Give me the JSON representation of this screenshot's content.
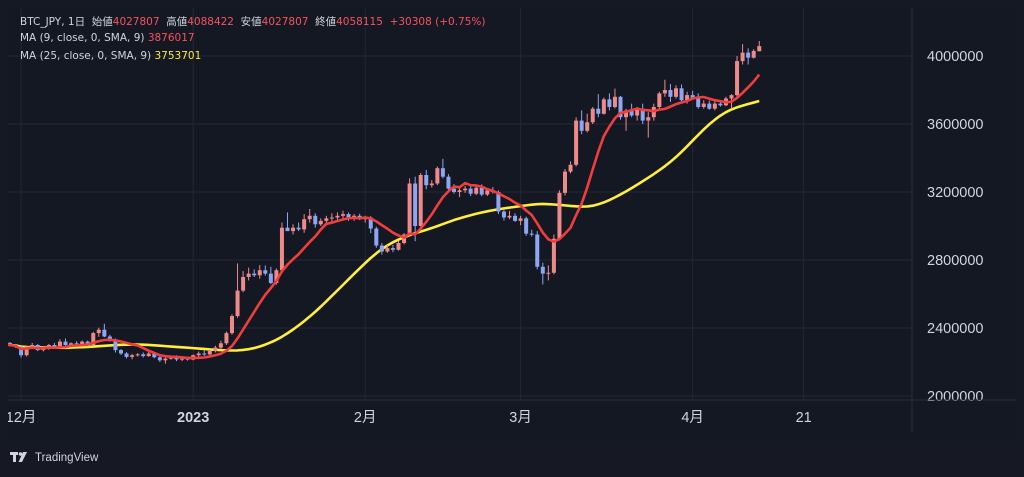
{
  "legend": {
    "symbol": "BTC_JPY",
    "interval": "1日",
    "open_label": "始値",
    "open": "4027807",
    "high_label": "高値",
    "high": "4088422",
    "low_label": "安値",
    "low": "4027807",
    "close_label": "終値",
    "close": "4058115",
    "change": "+30308 (+0.75%)",
    "ma1_label": "MA (9, close, 0, SMA, 9)",
    "ma1_value": "3876017",
    "ma2_label": "MA (25, close, 0, SMA, 9)",
    "ma2_value": "3753701"
  },
  "brand": {
    "name": "TradingView"
  },
  "colors": {
    "up": "#ef8a8a",
    "down": "#8ea6f2",
    "ma1": "#f23d3d",
    "ma2": "#ffee3d"
  },
  "chart_data": {
    "type": "candlestick",
    "y_ticks": [
      "4000000",
      "3600000",
      "3200000",
      "2800000",
      "2400000",
      "2000000"
    ],
    "ylim": [
      2000000,
      4200000
    ],
    "x_ticks": [
      {
        "label": "12月",
        "index": 2
      },
      {
        "label": "2023",
        "index": 33
      },
      {
        "label": "2月",
        "index": 64
      },
      {
        "label": "3月",
        "index": 92
      },
      {
        "label": "4月",
        "index": 123
      },
      {
        "label": "21",
        "index": 143
      }
    ],
    "candles": [
      [
        2312000,
        2318000,
        2294000,
        2300000
      ],
      [
        2300000,
        2306000,
        2283000,
        2290000
      ],
      [
        2290000,
        2300000,
        2226000,
        2240000
      ],
      [
        2240000,
        2298000,
        2232000,
        2290000
      ],
      [
        2290000,
        2312000,
        2280000,
        2300000
      ],
      [
        2300000,
        2306000,
        2264000,
        2270000
      ],
      [
        2270000,
        2294000,
        2262000,
        2280000
      ],
      [
        2280000,
        2306000,
        2272000,
        2300000
      ],
      [
        2300000,
        2312000,
        2284000,
        2290000
      ],
      [
        2290000,
        2334000,
        2286000,
        2320000
      ],
      [
        2320000,
        2338000,
        2296000,
        2300000
      ],
      [
        2300000,
        2316000,
        2287000,
        2310000
      ],
      [
        2310000,
        2322000,
        2292000,
        2305000
      ],
      [
        2305000,
        2326000,
        2298000,
        2320000
      ],
      [
        2320000,
        2326000,
        2292000,
        2300000
      ],
      [
        2300000,
        2378000,
        2296000,
        2370000
      ],
      [
        2370000,
        2402000,
        2348000,
        2390000
      ],
      [
        2390000,
        2425000,
        2346000,
        2350000
      ],
      [
        2350000,
        2360000,
        2321000,
        2330000
      ],
      [
        2330000,
        2338000,
        2256000,
        2270000
      ],
      [
        2270000,
        2276000,
        2242000,
        2250000
      ],
      [
        2250000,
        2258000,
        2221000,
        2230000
      ],
      [
        2230000,
        2248000,
        2216000,
        2240000
      ],
      [
        2240000,
        2252000,
        2232000,
        2245000
      ],
      [
        2245000,
        2256000,
        2226000,
        2235000
      ],
      [
        2235000,
        2260000,
        2230000,
        2250000
      ],
      [
        2250000,
        2258000,
        2222000,
        2228000
      ],
      [
        2228000,
        2238000,
        2200000,
        2210000
      ],
      [
        2210000,
        2226000,
        2190000,
        2220000
      ],
      [
        2220000,
        2234000,
        2214000,
        2225000
      ],
      [
        2225000,
        2240000,
        2205000,
        2215000
      ],
      [
        2215000,
        2230000,
        2205000,
        2220000
      ],
      [
        2220000,
        2230000,
        2208000,
        2214000
      ],
      [
        2214000,
        2244000,
        2210000,
        2240000
      ],
      [
        2240000,
        2262000,
        2230000,
        2250000
      ],
      [
        2250000,
        2270000,
        2236000,
        2245000
      ],
      [
        2245000,
        2272000,
        2240000,
        2265000
      ],
      [
        2265000,
        2296000,
        2256000,
        2285000
      ],
      [
        2285000,
        2325000,
        2275000,
        2310000
      ],
      [
        2310000,
        2380000,
        2300000,
        2370000
      ],
      [
        2370000,
        2480000,
        2360000,
        2470000
      ],
      [
        2470000,
        2780000,
        2460000,
        2620000
      ],
      [
        2620000,
        2735000,
        2610000,
        2700000
      ],
      [
        2700000,
        2755000,
        2680000,
        2720000
      ],
      [
        2720000,
        2745000,
        2700000,
        2710000
      ],
      [
        2710000,
        2770000,
        2690000,
        2740000
      ],
      [
        2740000,
        2768000,
        2708000,
        2720000
      ],
      [
        2720000,
        2760000,
        2658000,
        2665000
      ],
      [
        2665000,
        2750000,
        2655000,
        2740000
      ],
      [
        2740000,
        3020000,
        2730000,
        2990000
      ],
      [
        2990000,
        3080000,
        2980000,
        2970000
      ],
      [
        2970000,
        3010000,
        2950000,
        2990000
      ],
      [
        2990000,
        3020000,
        2970000,
        2980000
      ],
      [
        2980000,
        3070000,
        2960000,
        3040000
      ],
      [
        3040000,
        3100000,
        3020000,
        3060000
      ],
      [
        3060000,
        3075000,
        2990000,
        3010000
      ],
      [
        3010000,
        3045000,
        3000000,
        3030000
      ],
      [
        3030000,
        3060000,
        3015000,
        3045000
      ],
      [
        3045000,
        3075000,
        3025000,
        3050000
      ],
      [
        3050000,
        3080000,
        3030000,
        3060000
      ],
      [
        3060000,
        3090000,
        3040000,
        3070000
      ],
      [
        3070000,
        3080000,
        3030000,
        3045000
      ],
      [
        3045000,
        3070000,
        3030000,
        3060000
      ],
      [
        3060000,
        3072000,
        3035000,
        3040000
      ],
      [
        3040000,
        3060000,
        3020000,
        3050000
      ],
      [
        3050000,
        3058000,
        2958000,
        2985000
      ],
      [
        2985000,
        2996000,
        2872000,
        2885000
      ],
      [
        2885000,
        2900000,
        2832000,
        2850000
      ],
      [
        2850000,
        2888000,
        2842000,
        2870000
      ],
      [
        2870000,
        2890000,
        2846000,
        2860000
      ],
      [
        2860000,
        2912000,
        2855000,
        2900000
      ],
      [
        2900000,
        2958000,
        2892000,
        2950000
      ],
      [
        2950000,
        3280000,
        2940000,
        3250000
      ],
      [
        3250000,
        3290000,
        2910000,
        3000000
      ],
      [
        3000000,
        3312000,
        2996000,
        3300000
      ],
      [
        3300000,
        3330000,
        3216000,
        3240000
      ],
      [
        3240000,
        3270000,
        3226000,
        3250000
      ],
      [
        3250000,
        3350000,
        3240000,
        3340000
      ],
      [
        3340000,
        3395000,
        3280000,
        3290000
      ],
      [
        3290000,
        3305000,
        3206000,
        3220000
      ],
      [
        3220000,
        3246000,
        3190000,
        3200000
      ],
      [
        3200000,
        3228000,
        3170000,
        3210000
      ],
      [
        3210000,
        3236000,
        3195000,
        3220000
      ],
      [
        3220000,
        3238000,
        3176000,
        3190000
      ],
      [
        3190000,
        3232000,
        3182000,
        3225000
      ],
      [
        3225000,
        3245000,
        3175000,
        3185000
      ],
      [
        3185000,
        3222000,
        3176000,
        3210000
      ],
      [
        3210000,
        3230000,
        3190000,
        3200000
      ],
      [
        3200000,
        3210000,
        3070000,
        3085000
      ],
      [
        3085000,
        3098000,
        3032000,
        3050000
      ],
      [
        3050000,
        3090000,
        3040000,
        3060000
      ],
      [
        3060000,
        3075000,
        3025000,
        3030000
      ],
      [
        3030000,
        3060000,
        3005000,
        3045000
      ],
      [
        3045000,
        3055000,
        2942000,
        2955000
      ],
      [
        2955000,
        2978000,
        2938000,
        2950000
      ],
      [
        2950000,
        2970000,
        2745000,
        2760000
      ],
      [
        2760000,
        2784000,
        2656000,
        2720000
      ],
      [
        2720000,
        2768000,
        2680000,
        2725000
      ],
      [
        2725000,
        2950000,
        2715000,
        2925000
      ],
      [
        2925000,
        3210000,
        2915000,
        3195000
      ],
      [
        3195000,
        3335000,
        3180000,
        3320000
      ],
      [
        3320000,
        3380000,
        3310000,
        3360000
      ],
      [
        3360000,
        3640000,
        3350000,
        3620000
      ],
      [
        3620000,
        3680000,
        3540000,
        3560000
      ],
      [
        3560000,
        3660000,
        3550000,
        3610000
      ],
      [
        3610000,
        3700000,
        3600000,
        3690000
      ],
      [
        3690000,
        3776000,
        3640000,
        3660000
      ],
      [
        3660000,
        3756000,
        3655000,
        3745000
      ],
      [
        3745000,
        3780000,
        3680000,
        3700000
      ],
      [
        3700000,
        3808000,
        3692000,
        3760000
      ],
      [
        3760000,
        3765000,
        3626000,
        3640000
      ],
      [
        3640000,
        3690000,
        3560000,
        3680000
      ],
      [
        3680000,
        3720000,
        3640000,
        3650000
      ],
      [
        3650000,
        3700000,
        3620000,
        3690000
      ],
      [
        3690000,
        3720000,
        3600000,
        3620000
      ],
      [
        3620000,
        3670000,
        3520000,
        3640000
      ],
      [
        3640000,
        3720000,
        3620000,
        3700000
      ],
      [
        3700000,
        3790000,
        3690000,
        3780000
      ],
      [
        3780000,
        3860000,
        3760000,
        3800000
      ],
      [
        3800000,
        3835000,
        3730000,
        3760000
      ],
      [
        3760000,
        3828000,
        3750000,
        3810000
      ],
      [
        3810000,
        3832000,
        3722000,
        3740000
      ],
      [
        3740000,
        3790000,
        3720000,
        3770000
      ],
      [
        3770000,
        3795000,
        3745000,
        3750000
      ],
      [
        3750000,
        3780000,
        3690000,
        3700000
      ],
      [
        3700000,
        3740000,
        3690000,
        3720000
      ],
      [
        3720000,
        3738000,
        3684000,
        3690000
      ],
      [
        3690000,
        3732000,
        3680000,
        3720000
      ],
      [
        3720000,
        3735000,
        3702000,
        3710000
      ],
      [
        3710000,
        3760000,
        3705000,
        3750000
      ],
      [
        3750000,
        3775000,
        3690000,
        3770000
      ],
      [
        3770000,
        4000000,
        3760000,
        3970000
      ],
      [
        3970000,
        4070000,
        3950000,
        4020000
      ],
      [
        4020000,
        4045000,
        3950000,
        3990000
      ],
      [
        3990000,
        4040000,
        3985000,
        4030000
      ],
      [
        4027807,
        4088422,
        4027807,
        4058115
      ]
    ],
    "ma_series": [
      {
        "name": "MA (9, close, 0, SMA, 9)",
        "period": 9
      },
      {
        "name": "MA (25, close, 0, SMA, 9)",
        "period": 25
      }
    ]
  }
}
